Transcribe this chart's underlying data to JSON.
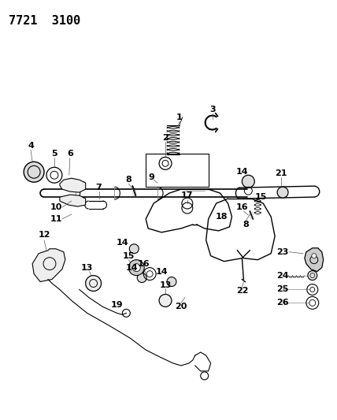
{
  "title": "7721  3100",
  "bg_color": "#ffffff",
  "line_color": "#000000",
  "title_fontsize": 11,
  "label_fontsize": 8,
  "fig_width": 4.28,
  "fig_height": 5.33,
  "dpi": 100
}
